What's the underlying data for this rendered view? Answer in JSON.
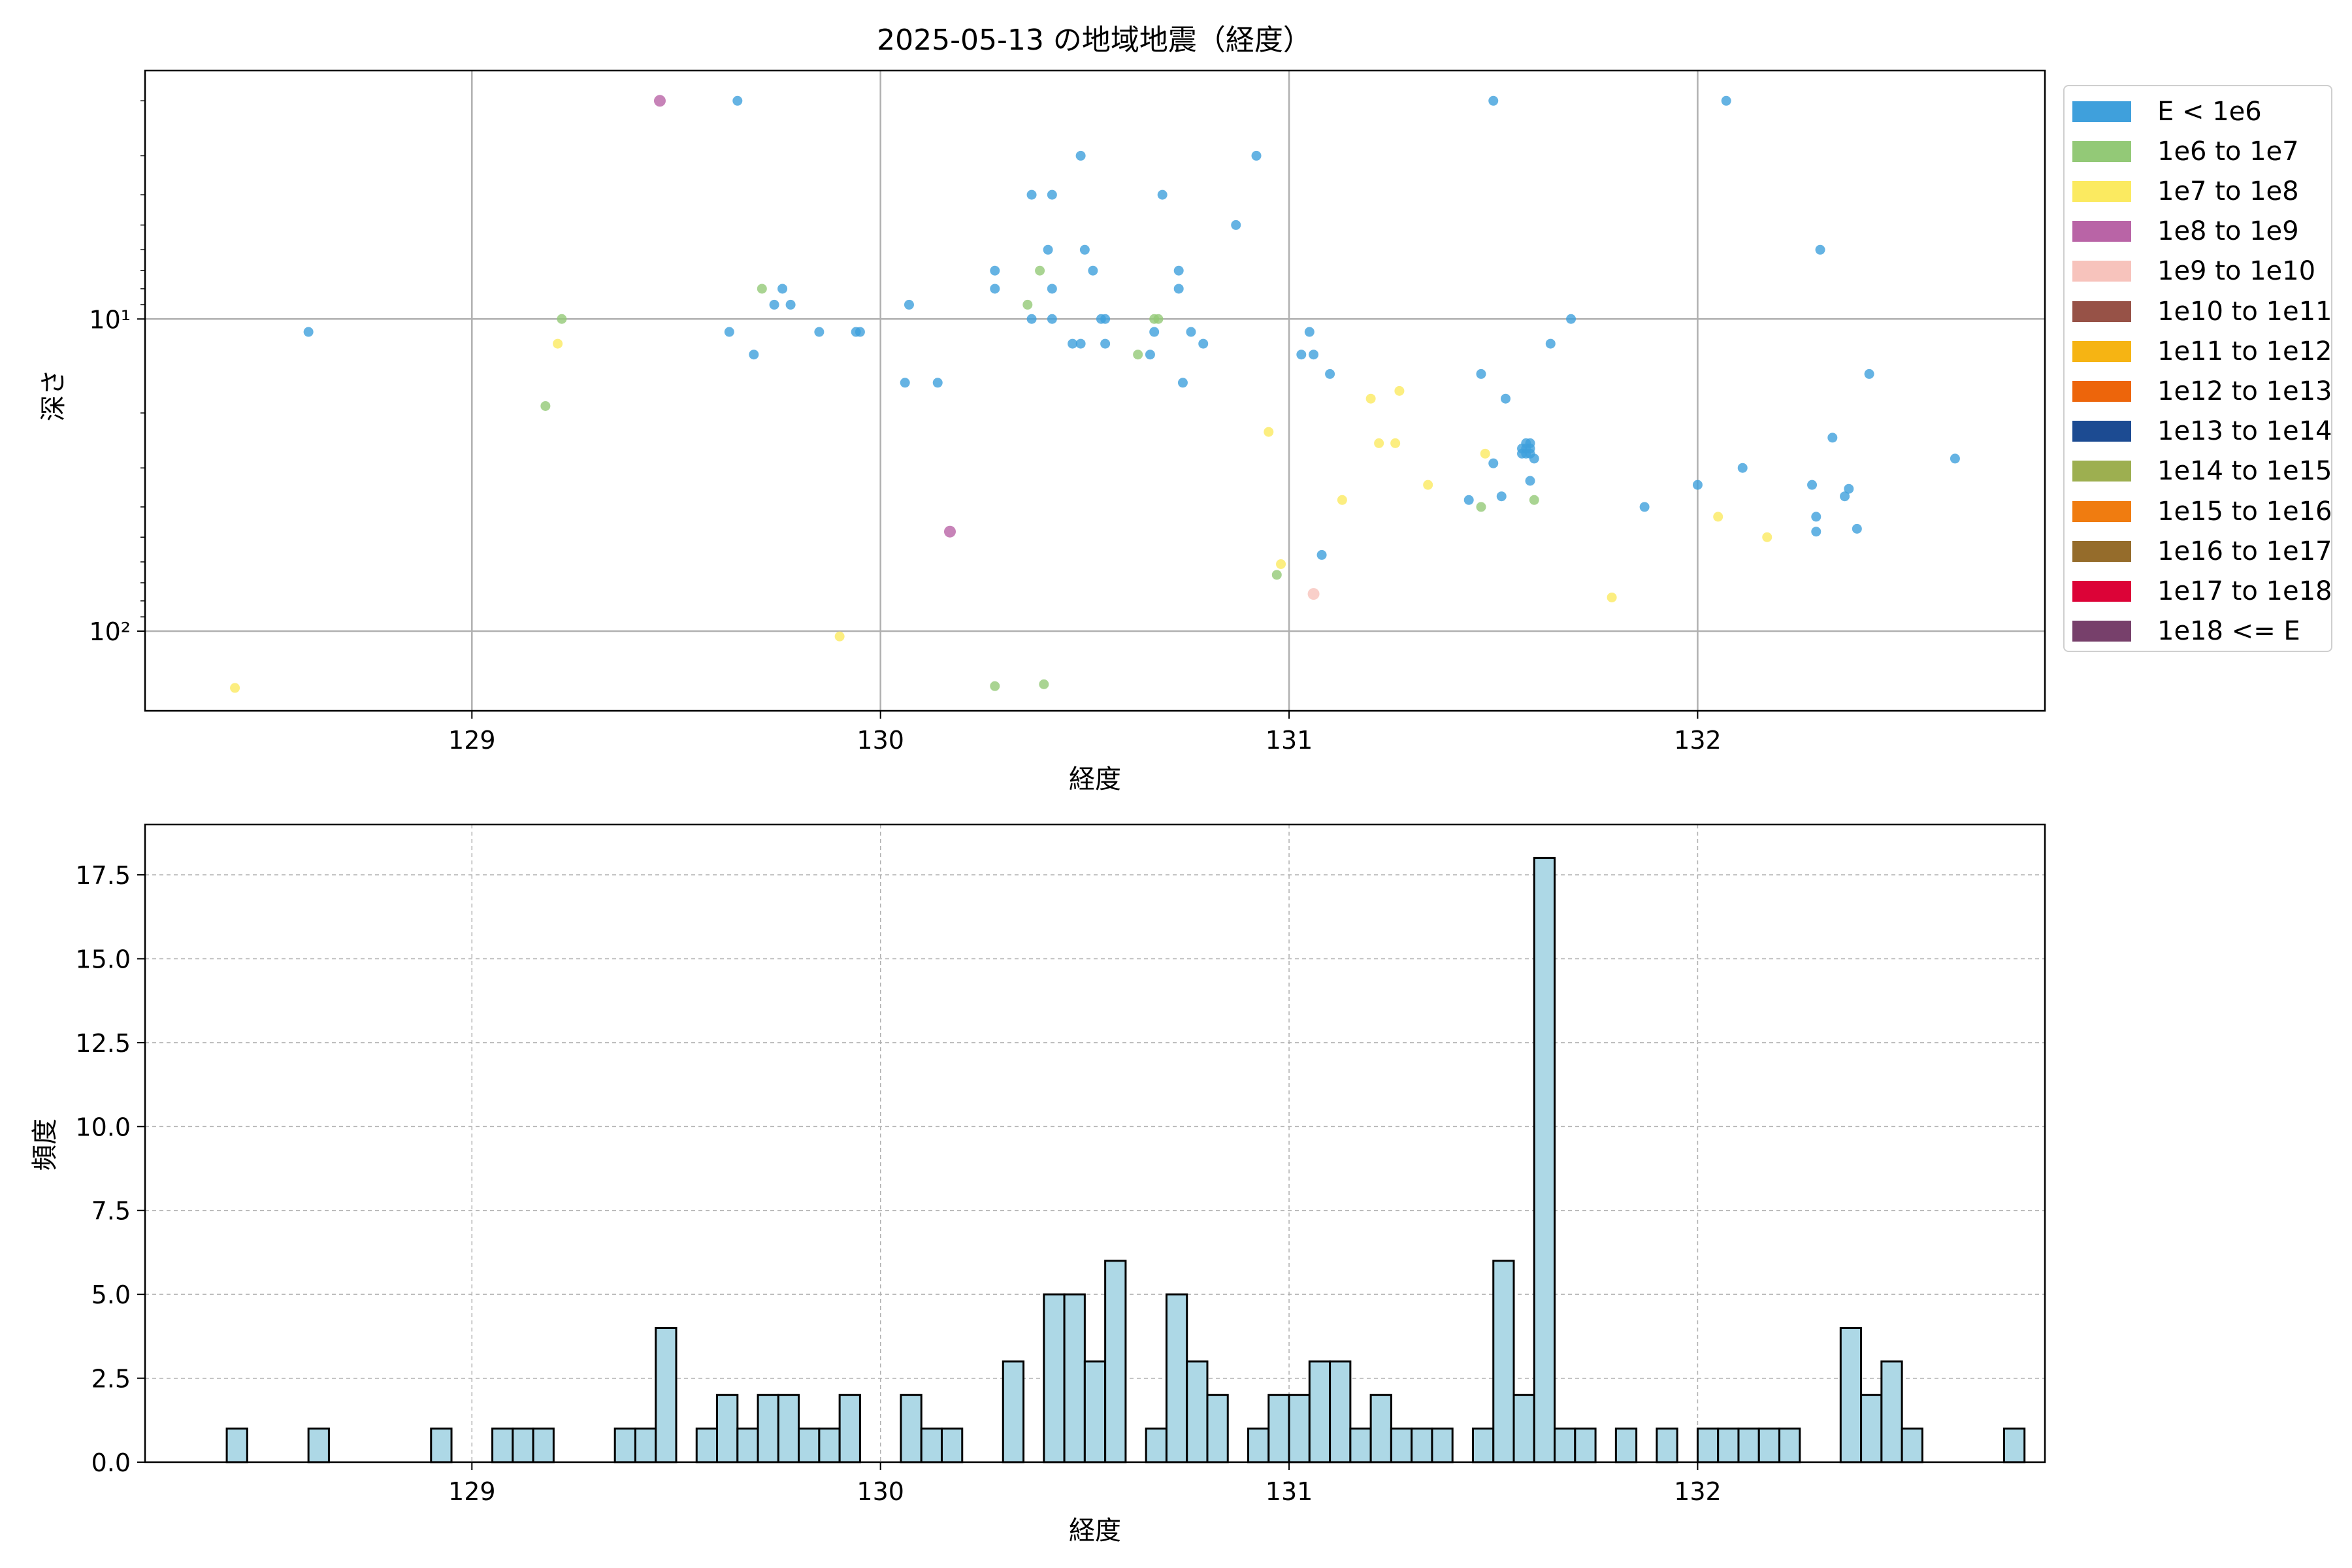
{
  "chart_data": [
    {
      "type": "scatter",
      "title": "2025-05-13 の地域地震（経度）",
      "xlabel": "経度",
      "ylabel": "深さ",
      "x_ticks": [
        129,
        130,
        131,
        132
      ],
      "y_scale": "log",
      "y_inverted": true,
      "xlim": [
        128.2,
        132.85
      ],
      "ylim": [
        180,
        1.6
      ],
      "y_ticks": [
        {
          "value": 10,
          "label": "10¹"
        },
        {
          "value": 100,
          "label": "10²"
        }
      ],
      "grid": true,
      "legend_position": "right-outside",
      "legend": [
        {
          "label": "E < 1e6",
          "color": "#3fa0dc"
        },
        {
          "label": "1e6 to 1e7",
          "color": "#93c977"
        },
        {
          "label": "1e7 to 1e8",
          "color": "#fbea60"
        },
        {
          "label": "1e8 to 1e9",
          "color": "#b964a6"
        },
        {
          "label": "1e9 to 1e10",
          "color": "#f7c3bc"
        },
        {
          "label": "1e10 to 1e11",
          "color": "#975247"
        },
        {
          "label": "1e11 to 1e12",
          "color": "#f6b413"
        },
        {
          "label": "1e12 to 1e13",
          "color": "#ed650b"
        },
        {
          "label": "1e13 to 1e14",
          "color": "#1c4b92"
        },
        {
          "label": "1e14 to 1e15",
          "color": "#9daf50"
        },
        {
          "label": "1e15 to 1e16",
          "color": "#f07c10"
        },
        {
          "label": "1e16 to 1e17",
          "color": "#956c2b"
        },
        {
          "label": "1e17 to 1e18",
          "color": "#dc0337"
        },
        {
          "label": "1e18 <= E",
          "color": "#77406b"
        }
      ],
      "series": [
        {
          "class": 0,
          "points": [
            [
              128.6,
              11
            ],
            [
              129.65,
              2
            ],
            [
              129.63,
              11
            ],
            [
              129.69,
              13
            ],
            [
              129.74,
              9
            ],
            [
              129.76,
              8
            ],
            [
              129.78,
              9
            ],
            [
              129.85,
              11
            ],
            [
              129.94,
              11
            ],
            [
              129.95,
              11
            ],
            [
              130.07,
              9
            ],
            [
              130.06,
              16
            ],
            [
              130.14,
              16
            ],
            [
              130.28,
              7
            ],
            [
              130.28,
              8
            ],
            [
              130.37,
              4
            ],
            [
              130.37,
              10
            ],
            [
              130.42,
              4
            ],
            [
              130.41,
              6
            ],
            [
              130.42,
              8
            ],
            [
              130.42,
              10
            ],
            [
              130.47,
              12
            ],
            [
              130.49,
              12
            ],
            [
              130.49,
              3
            ],
            [
              130.5,
              6
            ],
            [
              130.52,
              7
            ],
            [
              130.54,
              10
            ],
            [
              130.55,
              10
            ],
            [
              130.55,
              12
            ],
            [
              130.66,
              13
            ],
            [
              130.67,
              11
            ],
            [
              130.69,
              4
            ],
            [
              130.73,
              7
            ],
            [
              130.73,
              8
            ],
            [
              130.74,
              16
            ],
            [
              130.76,
              11
            ],
            [
              130.79,
              12
            ],
            [
              130.87,
              5
            ],
            [
              130.92,
              3
            ],
            [
              131.03,
              13
            ],
            [
              131.05,
              11
            ],
            [
              131.06,
              13
            ],
            [
              131.1,
              15
            ],
            [
              131.08,
              57
            ],
            [
              131.47,
              15
            ],
            [
              131.5,
              2
            ],
            [
              131.53,
              18
            ],
            [
              131.44,
              38
            ],
            [
              131.52,
              37
            ],
            [
              131.5,
              29
            ],
            [
              131.57,
              26
            ],
            [
              131.58,
              26
            ],
            [
              131.58,
              25
            ],
            [
              131.58,
              27
            ],
            [
              131.59,
              25
            ],
            [
              131.59,
              26
            ],
            [
              131.59,
              27
            ],
            [
              131.6,
              28
            ],
            [
              131.57,
              27
            ],
            [
              131.59,
              33
            ],
            [
              131.64,
              12
            ],
            [
              131.69,
              10
            ],
            [
              131.87,
              40
            ],
            [
              132.0,
              34
            ],
            [
              132.07,
              2
            ],
            [
              132.11,
              30
            ],
            [
              132.28,
              34
            ],
            [
              132.3,
              6
            ],
            [
              132.29,
              43
            ],
            [
              132.29,
              48
            ],
            [
              132.33,
              24
            ],
            [
              132.36,
              37
            ],
            [
              132.37,
              35
            ],
            [
              132.39,
              47
            ],
            [
              132.42,
              15
            ],
            [
              132.63,
              28
            ]
          ]
        },
        {
          "class": 1,
          "points": [
            [
              129.18,
              19
            ],
            [
              129.22,
              10
            ],
            [
              129.71,
              8
            ],
            [
              130.28,
              150
            ],
            [
              130.36,
              9
            ],
            [
              130.39,
              7
            ],
            [
              130.4,
              148
            ],
            [
              130.63,
              13
            ],
            [
              130.67,
              10
            ],
            [
              130.68,
              10
            ],
            [
              130.97,
              66
            ],
            [
              131.47,
              40
            ],
            [
              131.6,
              38
            ]
          ]
        },
        {
          "class": 2,
          "points": [
            [
              128.42,
              152
            ],
            [
              129.21,
              12
            ],
            [
              129.9,
              104
            ],
            [
              130.95,
              23
            ],
            [
              130.98,
              61
            ],
            [
              131.13,
              38
            ],
            [
              131.2,
              18
            ],
            [
              131.22,
              25
            ],
            [
              131.26,
              25
            ],
            [
              131.27,
              17
            ],
            [
              131.34,
              34
            ],
            [
              131.48,
              27
            ],
            [
              131.79,
              78
            ],
            [
              132.05,
              43
            ],
            [
              132.17,
              50
            ]
          ]
        },
        {
          "class": 3,
          "points": [
            [
              129.46,
              2
            ],
            [
              130.17,
              48
            ]
          ]
        },
        {
          "class": 4,
          "points": [
            [
              131.06,
              76
            ]
          ]
        }
      ]
    },
    {
      "type": "bar",
      "subtype": "histogram",
      "xlabel": "経度",
      "ylabel": "頻度",
      "x_ticks": [
        129,
        130,
        131,
        132
      ],
      "y_ticks": [
        "0.0",
        "2.5",
        "5.0",
        "7.5",
        "10.0",
        "12.5",
        "15.0",
        "17.5"
      ],
      "xlim": [
        128.2,
        132.85
      ],
      "ylim": [
        0,
        19
      ],
      "bin_start": 128.4,
      "bin_width": 0.05,
      "counts": [
        1,
        0,
        0,
        0,
        1,
        0,
        0,
        0,
        0,
        0,
        1,
        0,
        0,
        1,
        1,
        1,
        0,
        0,
        0,
        1,
        1,
        4,
        0,
        1,
        2,
        1,
        2,
        2,
        1,
        1,
        2,
        0,
        0,
        2,
        1,
        1,
        0,
        0,
        3,
        0,
        5,
        5,
        3,
        6,
        0,
        1,
        5,
        3,
        2,
        0,
        1,
        2,
        2,
        3,
        3,
        1,
        2,
        1,
        1,
        1,
        0,
        1,
        6,
        2,
        18,
        1,
        1,
        0,
        1,
        0,
        1,
        0,
        1,
        1,
        1,
        1,
        1,
        0,
        0,
        4,
        2,
        3,
        1,
        0,
        0,
        0,
        0,
        1
      ],
      "bar_color": "#add8e6",
      "grid": true
    }
  ]
}
